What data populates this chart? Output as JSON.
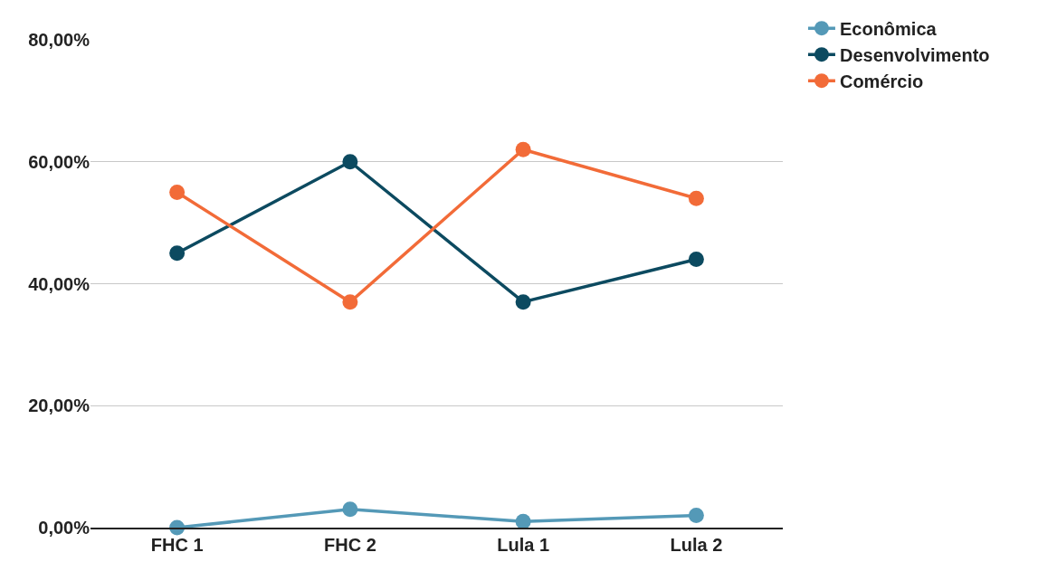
{
  "chart_data": {
    "type": "line",
    "categories": [
      "FHC 1",
      "FHC 2",
      "Lula 1",
      "Lula 2"
    ],
    "series": [
      {
        "name": "Econômica",
        "color": "#5499b7",
        "values": [
          0,
          3,
          1,
          2
        ]
      },
      {
        "name": "Desenvolvimento",
        "color": "#0c4a60",
        "values": [
          45,
          60,
          37,
          44
        ]
      },
      {
        "name": "Comércio",
        "color": "#f26b38",
        "values": [
          55,
          37,
          62,
          54
        ]
      }
    ],
    "ylim": [
      0,
      80
    ],
    "yticks": [
      {
        "value": 0,
        "label": "0,00%"
      },
      {
        "value": 20,
        "label": "20,00%"
      },
      {
        "value": 40,
        "label": "40,00%"
      },
      {
        "value": 60,
        "label": "60,00%"
      },
      {
        "value": 80,
        "label": "80,00%"
      }
    ],
    "grid": "y",
    "legend": "top right",
    "marker": "circle",
    "line_style": "solid"
  }
}
